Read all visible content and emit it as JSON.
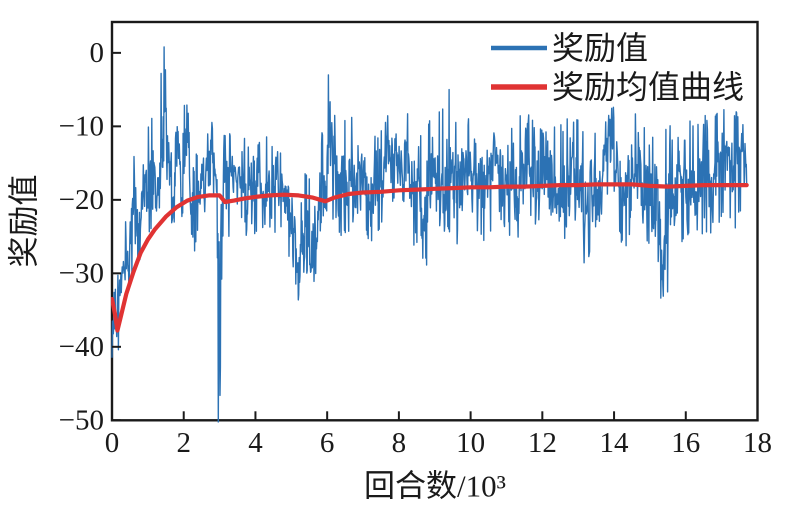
{
  "figure": {
    "background": "#ffffff",
    "axis_color": "#1a1a1a"
  },
  "chart_data": {
    "type": "line",
    "title": "",
    "xlabel": "回合数/10³",
    "ylabel": "奖励值",
    "xlim": [
      0,
      18
    ],
    "ylim": [
      -50,
      4.2
    ],
    "grid": false,
    "legend_position": "upper right",
    "legend_frame": false,
    "xticks": {
      "values": [
        0,
        2,
        4,
        6,
        8,
        10,
        12,
        14,
        16,
        18
      ],
      "labels": [
        "0",
        "2",
        "4",
        "6",
        "8",
        "10",
        "12",
        "14",
        "16",
        "18"
      ]
    },
    "yticks": {
      "values": [
        0,
        -10,
        -20,
        -30,
        -40,
        -50
      ],
      "labels": [
        "0",
        "−10",
        "−20",
        "−30",
        "−40",
        "−50"
      ]
    },
    "series": [
      {
        "name": "奖励值",
        "color": "#2c72b4",
        "kind": "noisy-line",
        "x_start": 0,
        "x_end": 17.7,
        "start_y": -41.5,
        "envelope": [
          [
            0.0,
            -43,
            -33
          ],
          [
            0.15,
            -42,
            -30
          ],
          [
            0.3,
            -38,
            -25
          ],
          [
            0.5,
            -33,
            -17
          ],
          [
            0.65,
            -30,
            -11
          ],
          [
            0.8,
            -28,
            -13
          ],
          [
            1.0,
            -25,
            -9
          ],
          [
            1.2,
            -27,
            -8
          ],
          [
            1.45,
            -18,
            0.5
          ],
          [
            1.6,
            -23,
            -7
          ],
          [
            1.8,
            -26,
            -6
          ],
          [
            2.0,
            -25,
            -7
          ],
          [
            2.2,
            -29,
            -6
          ],
          [
            2.5,
            -23,
            -8
          ],
          [
            2.8,
            -22,
            -7
          ],
          [
            2.95,
            -35,
            -9
          ],
          [
            3.0,
            -50.5,
            -10
          ],
          [
            3.05,
            -35,
            -11
          ],
          [
            3.2,
            -26,
            -9
          ],
          [
            3.5,
            -21,
            -12
          ],
          [
            3.8,
            -26,
            -11
          ],
          [
            4.1,
            -24,
            -12
          ],
          [
            4.4,
            -27,
            -11
          ],
          [
            4.7,
            -24,
            -13
          ],
          [
            5.0,
            -29,
            -14
          ],
          [
            5.2,
            -37,
            -15
          ],
          [
            5.45,
            -36,
            -16
          ],
          [
            5.7,
            -31,
            -13
          ],
          [
            5.9,
            -26,
            -10
          ],
          [
            6.03,
            -24,
            -3
          ],
          [
            6.2,
            -23,
            -8
          ],
          [
            6.5,
            -26,
            -9
          ],
          [
            6.8,
            -22,
            -8
          ],
          [
            7.1,
            -25,
            -9
          ],
          [
            7.4,
            -28,
            -10
          ],
          [
            7.7,
            -23,
            -8
          ],
          [
            8.0,
            -25,
            -9
          ],
          [
            8.3,
            -27,
            -8
          ],
          [
            8.7,
            -30,
            -10
          ],
          [
            9.0,
            -26,
            -8
          ],
          [
            9.4,
            -30,
            -5
          ],
          [
            9.7,
            -26,
            -10
          ],
          [
            10.0,
            -24,
            -8
          ],
          [
            10.4,
            -27,
            -10
          ],
          [
            10.8,
            -23,
            -7
          ],
          [
            11.2,
            -26,
            -9
          ],
          [
            11.6,
            -23,
            -8
          ],
          [
            12.0,
            -26,
            -9
          ],
          [
            12.4,
            -28,
            -10
          ],
          [
            12.8,
            -24,
            -8
          ],
          [
            13.2,
            -29,
            -10
          ],
          [
            13.5,
            -25,
            -9
          ],
          [
            13.9,
            -23,
            -7
          ],
          [
            14.3,
            -27,
            -9
          ],
          [
            14.7,
            -25,
            -8
          ],
          [
            15.0,
            -31,
            -11
          ],
          [
            15.3,
            -34,
            -9
          ],
          [
            15.6,
            -33,
            -10
          ],
          [
            15.9,
            -26,
            -8
          ],
          [
            16.3,
            -24,
            -9
          ],
          [
            16.7,
            -26,
            -8
          ],
          [
            17.1,
            -22,
            -7
          ],
          [
            17.4,
            -24,
            -8
          ],
          [
            17.7,
            -19,
            -9
          ]
        ],
        "spikes": [
          [
            1.45,
            0.8
          ],
          [
            2.96,
            -50.5
          ],
          [
            6.03,
            -3.0
          ],
          [
            9.4,
            -5.0
          ]
        ],
        "noise": {
          "seed": 42,
          "points": 1500
        }
      },
      {
        "name": "奖励均值曲线",
        "color": "#e03333",
        "kind": "line",
        "points": [
          [
            0.0,
            -33.5
          ],
          [
            0.08,
            -35.5
          ],
          [
            0.15,
            -37.8
          ],
          [
            0.25,
            -35.8
          ],
          [
            0.4,
            -32.8
          ],
          [
            0.6,
            -29.8
          ],
          [
            0.8,
            -27.2
          ],
          [
            1.0,
            -25.4
          ],
          [
            1.2,
            -24.0
          ],
          [
            1.5,
            -22.3
          ],
          [
            1.8,
            -21.0
          ],
          [
            2.1,
            -20.1
          ],
          [
            2.4,
            -19.6
          ],
          [
            2.7,
            -19.4
          ],
          [
            3.0,
            -19.4
          ],
          [
            3.15,
            -20.3
          ],
          [
            3.4,
            -20.1
          ],
          [
            3.7,
            -19.8
          ],
          [
            4.0,
            -19.6
          ],
          [
            4.4,
            -19.4
          ],
          [
            4.8,
            -19.3
          ],
          [
            5.2,
            -19.4
          ],
          [
            5.6,
            -19.7
          ],
          [
            5.95,
            -20.2
          ],
          [
            6.2,
            -19.7
          ],
          [
            6.6,
            -19.2
          ],
          [
            7.0,
            -19.0
          ],
          [
            7.5,
            -18.9
          ],
          [
            8.0,
            -18.7
          ],
          [
            8.5,
            -18.6
          ],
          [
            9.0,
            -18.5
          ],
          [
            9.5,
            -18.4
          ],
          [
            10.0,
            -18.3
          ],
          [
            10.5,
            -18.3
          ],
          [
            11.0,
            -18.2
          ],
          [
            11.5,
            -18.2
          ],
          [
            12.0,
            -18.1
          ],
          [
            12.5,
            -18.0
          ],
          [
            13.0,
            -18.0
          ],
          [
            13.5,
            -17.9
          ],
          [
            14.0,
            -17.9
          ],
          [
            14.5,
            -17.9
          ],
          [
            15.0,
            -18.1
          ],
          [
            15.5,
            -18.2
          ],
          [
            16.0,
            -18.1
          ],
          [
            16.5,
            -18.0
          ],
          [
            17.0,
            -18.0
          ],
          [
            17.7,
            -18.0
          ]
        ]
      }
    ]
  }
}
